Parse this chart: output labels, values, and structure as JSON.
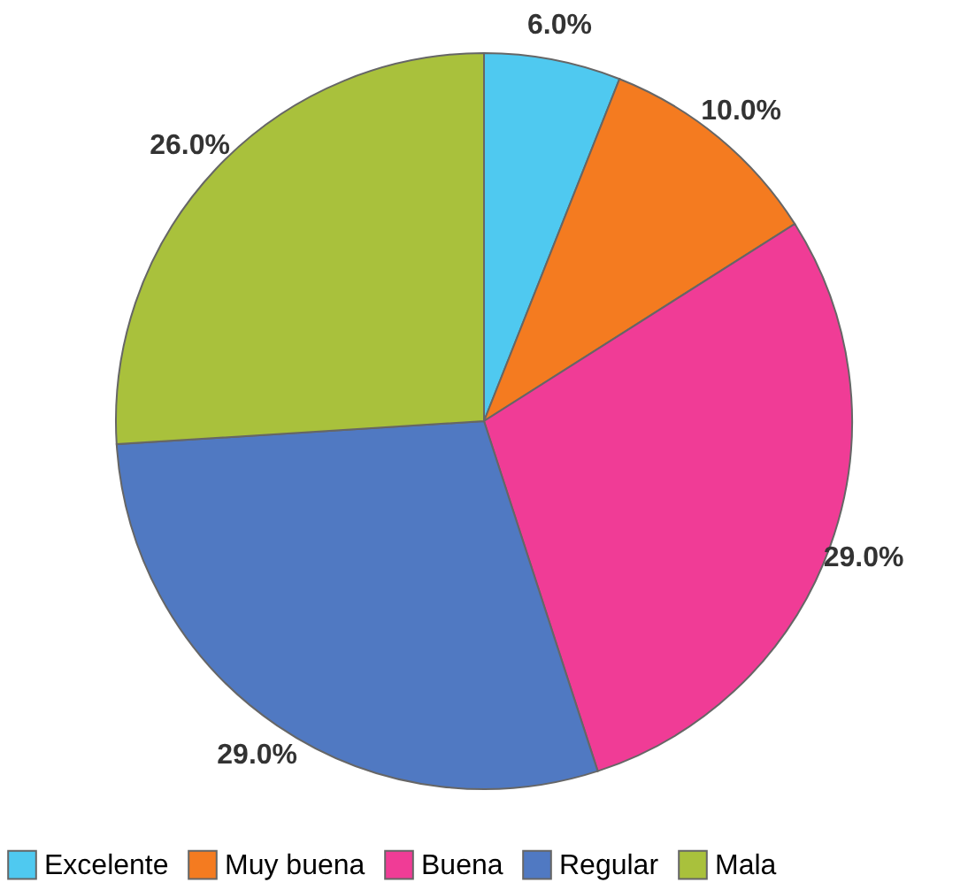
{
  "chart_data": {
    "type": "pie",
    "categories": [
      "Excelente",
      "Muy buena",
      "Buena",
      "Regular",
      "Mala"
    ],
    "values": [
      6.0,
      10.0,
      29.0,
      29.0,
      26.0
    ],
    "colors": [
      "#4fc9f0",
      "#f47b20",
      "#f03c96",
      "#5079c2",
      "#a9c13c"
    ],
    "value_labels": [
      "6.0%",
      "10.0%",
      "29.0%",
      "29.0%",
      "26.0%"
    ],
    "legend": "bottom"
  }
}
